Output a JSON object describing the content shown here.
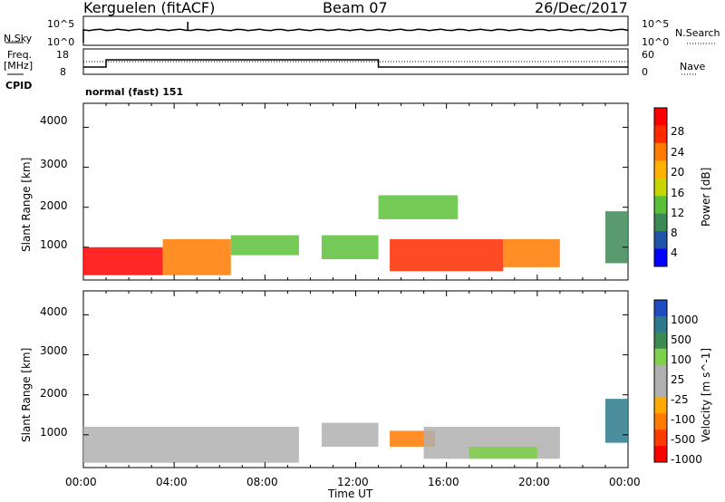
{
  "header": {
    "station": "Kerguelen (fitACF)",
    "beam": "Beam 07",
    "date": "26/Dec/2017"
  },
  "status_panel": {
    "left_top_label": "N.Sky",
    "left_top_ticks": [
      "10^5",
      "10^0"
    ],
    "right_top_label": "N.Search",
    "right_top_ticks": [
      "10^5",
      "10^0"
    ],
    "left_mid_label_1": "Freq.",
    "left_mid_label_2": "[MHz]",
    "left_mid_ticks": [
      "18",
      "8"
    ],
    "right_mid_label": "Nave",
    "right_mid_ticks": [
      "60",
      "0"
    ],
    "cpid_label": "CPID",
    "cpid_value": "normal (fast) 151"
  },
  "x_axis": {
    "label": "Time UT",
    "ticks": [
      "00:00",
      "04:00",
      "08:00",
      "12:00",
      "16:00",
      "20:00",
      "00:00"
    ]
  },
  "colors": {
    "power": [
      "#0000ff",
      "#2155a8",
      "#3c8a56",
      "#5cbf3a",
      "#c6d400",
      "#ffb000",
      "#ff7a00",
      "#ff2a00",
      "#ff0000"
    ],
    "velocity": [
      "#ff0000",
      "#ff3c00",
      "#ff7a00",
      "#ffaa00",
      "#b0b0b0",
      "#b0b0b0",
      "#7fd04a",
      "#3c8a56",
      "#2e7a8c",
      "#1f4cc0"
    ]
  },
  "chart_data": [
    {
      "type": "heatmap",
      "title": "",
      "xlabel": "",
      "ylabel": "Slant Range [km]",
      "xlim": [
        0,
        24
      ],
      "ylim": [
        180,
        4600
      ],
      "yticks": [
        "1000",
        "2000",
        "3000",
        "4000"
      ],
      "colorbar": {
        "label": "Power [dB]",
        "ticks": [
          "28",
          "24",
          "20",
          "16",
          "12",
          "8",
          "4"
        ],
        "range": [
          0,
          32
        ]
      },
      "regions": [
        {
          "t0": 0.0,
          "t1": 3.5,
          "r0": 300,
          "r1": 1000,
          "value": 30
        },
        {
          "t0": 3.5,
          "t1": 6.5,
          "r0": 300,
          "r1": 1200,
          "value": 22
        },
        {
          "t0": 6.5,
          "t1": 9.5,
          "r0": 800,
          "r1": 1300,
          "value": 14
        },
        {
          "t0": 10.5,
          "t1": 13.0,
          "r0": 700,
          "r1": 1300,
          "value": 12
        },
        {
          "t0": 13.0,
          "t1": 16.5,
          "r0": 1700,
          "r1": 2300,
          "value": 14
        },
        {
          "t0": 13.5,
          "t1": 18.5,
          "r0": 400,
          "r1": 1200,
          "value": 26
        },
        {
          "t0": 18.5,
          "t1": 21.0,
          "r0": 500,
          "r1": 1200,
          "value": 24
        },
        {
          "t0": 23.0,
          "t1": 24.0,
          "r0": 600,
          "r1": 1900,
          "value": 10
        }
      ]
    },
    {
      "type": "heatmap",
      "title": "",
      "xlabel": "Time UT",
      "ylabel": "Slant Range [km]",
      "xlim": [
        0,
        24
      ],
      "ylim": [
        180,
        4600
      ],
      "yticks": [
        "1000",
        "2000",
        "3000",
        "4000"
      ],
      "colorbar": {
        "label": "Velocity [m s^-1]",
        "ticks": [
          "1000",
          "500",
          "100",
          "25",
          "-25",
          "-100",
          "-500",
          "-1000"
        ],
        "range": [
          -1000,
          1000
        ]
      },
      "regions": [
        {
          "t0": 0.0,
          "t1": 9.5,
          "r0": 300,
          "r1": 1200,
          "value": 0
        },
        {
          "t0": 10.5,
          "t1": 13.0,
          "r0": 700,
          "r1": 1300,
          "value": 0
        },
        {
          "t0": 13.5,
          "t1": 15.5,
          "r0": 700,
          "r1": 1100,
          "value": -150
        },
        {
          "t0": 15.0,
          "t1": 21.0,
          "r0": 400,
          "r1": 1200,
          "value": 0
        },
        {
          "t0": 17.0,
          "t1": 20.0,
          "r0": 400,
          "r1": 700,
          "value": 150
        },
        {
          "t0": 23.0,
          "t1": 24.0,
          "r0": 800,
          "r1": 1900,
          "value": 800
        }
      ]
    }
  ]
}
